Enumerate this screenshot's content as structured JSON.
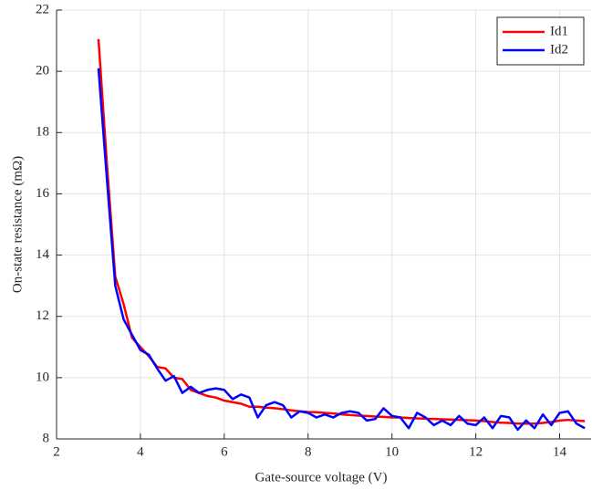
{
  "chart_data": {
    "type": "line",
    "xlabel": "Gate-source voltage (V)",
    "ylabel": "On-state resistance (mΩ)",
    "x": [
      3.0,
      3.2,
      3.4,
      3.6,
      3.8,
      4.0,
      4.2,
      4.4,
      4.6,
      4.8,
      5.0,
      5.2,
      5.4,
      5.6,
      5.8,
      6.0,
      6.2,
      6.4,
      6.6,
      6.8,
      7.0,
      7.2,
      7.4,
      7.6,
      7.8,
      8.0,
      8.2,
      8.4,
      8.6,
      8.8,
      9.0,
      9.2,
      9.4,
      9.6,
      9.8,
      10.0,
      10.2,
      10.4,
      10.6,
      10.8,
      11.0,
      11.2,
      11.4,
      11.6,
      11.8,
      12.0,
      12.2,
      12.4,
      12.6,
      12.8,
      13.0,
      13.2,
      13.4,
      13.6,
      13.8,
      14.0,
      14.2,
      14.4,
      14.6
    ],
    "series": [
      {
        "name": "Id1",
        "color": "#ff0000",
        "values": [
          21.05,
          17.0,
          13.3,
          12.4,
          11.3,
          11.0,
          10.7,
          10.35,
          10.3,
          10.0,
          9.95,
          9.6,
          9.5,
          9.4,
          9.35,
          9.25,
          9.2,
          9.15,
          9.05,
          9.05,
          9.02,
          9.0,
          8.97,
          8.93,
          8.9,
          8.88,
          8.87,
          8.85,
          8.83,
          8.8,
          8.78,
          8.76,
          8.75,
          8.73,
          8.72,
          8.7,
          8.7,
          8.68,
          8.67,
          8.66,
          8.65,
          8.64,
          8.63,
          8.62,
          8.61,
          8.6,
          8.58,
          8.55,
          8.53,
          8.52,
          8.5,
          8.5,
          8.5,
          8.52,
          8.55,
          8.6,
          8.62,
          8.6,
          8.58
        ]
      },
      {
        "name": "Id2",
        "color": "#0000ff",
        "values": [
          20.1,
          16.5,
          13.0,
          11.9,
          11.4,
          10.9,
          10.75,
          10.3,
          9.9,
          10.05,
          9.5,
          9.7,
          9.5,
          9.6,
          9.65,
          9.6,
          9.3,
          9.45,
          9.35,
          8.7,
          9.1,
          9.2,
          9.1,
          8.7,
          8.9,
          8.85,
          8.7,
          8.8,
          8.7,
          8.85,
          8.9,
          8.85,
          8.6,
          8.65,
          9.0,
          8.75,
          8.7,
          8.35,
          8.85,
          8.7,
          8.45,
          8.6,
          8.45,
          8.75,
          8.5,
          8.45,
          8.7,
          8.35,
          8.75,
          8.7,
          8.3,
          8.6,
          8.35,
          8.8,
          8.45,
          8.85,
          8.9,
          8.5,
          8.35
        ]
      }
    ],
    "xlim": [
      2,
      14.75
    ],
    "ylim": [
      8,
      22
    ],
    "xticks": [
      2,
      4,
      6,
      8,
      10,
      12,
      14
    ],
    "yticks": [
      8,
      10,
      12,
      14,
      16,
      18,
      20,
      22
    ],
    "grid": true,
    "legend": "top-right"
  }
}
